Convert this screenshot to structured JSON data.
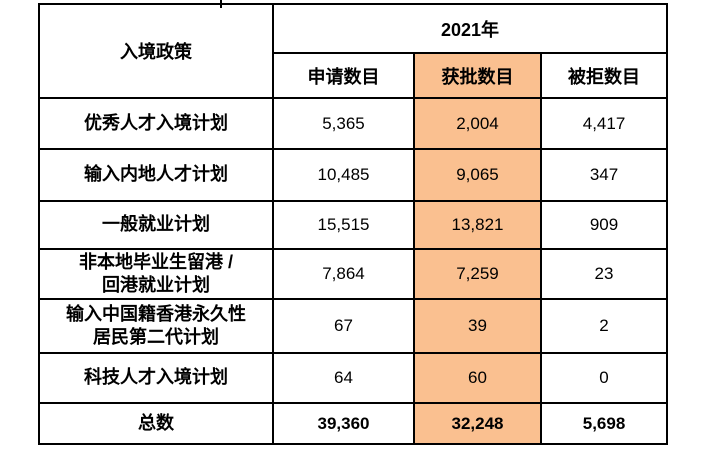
{
  "colors": {
    "highlight_fill": "#FAC090",
    "border": "#000000",
    "text": "#000000",
    "page_background": "#FFFFFF"
  },
  "chart_data": {
    "type": "table",
    "corner_header": "入境政策",
    "year_header": "2021年",
    "columns": [
      "申请数目",
      "获批数目",
      "被拒数目"
    ],
    "highlighted_column": "获批数目",
    "rows": [
      {
        "label": "优秀人才入境计划",
        "applied": "5,365",
        "approved": "2,004",
        "rejected": "4,417"
      },
      {
        "label": "输入内地人才计划",
        "applied": "10,485",
        "approved": "9,065",
        "rejected": "347"
      },
      {
        "label": "一般就业计划",
        "applied": "15,515",
        "approved": "13,821",
        "rejected": "909"
      },
      {
        "label": "非本地毕业生留港 /\n回港就业计划",
        "applied": "7,864",
        "approved": "7,259",
        "rejected": "23"
      },
      {
        "label": "输入中国籍香港永久性\n居民第二代计划",
        "applied": "67",
        "approved": "39",
        "rejected": "2"
      },
      {
        "label": "科技人才入境计划",
        "applied": "64",
        "approved": "60",
        "rejected": "0"
      }
    ],
    "total": {
      "label": "总数",
      "applied": "39,360",
      "approved": "32,248",
      "rejected": "5,698"
    }
  }
}
